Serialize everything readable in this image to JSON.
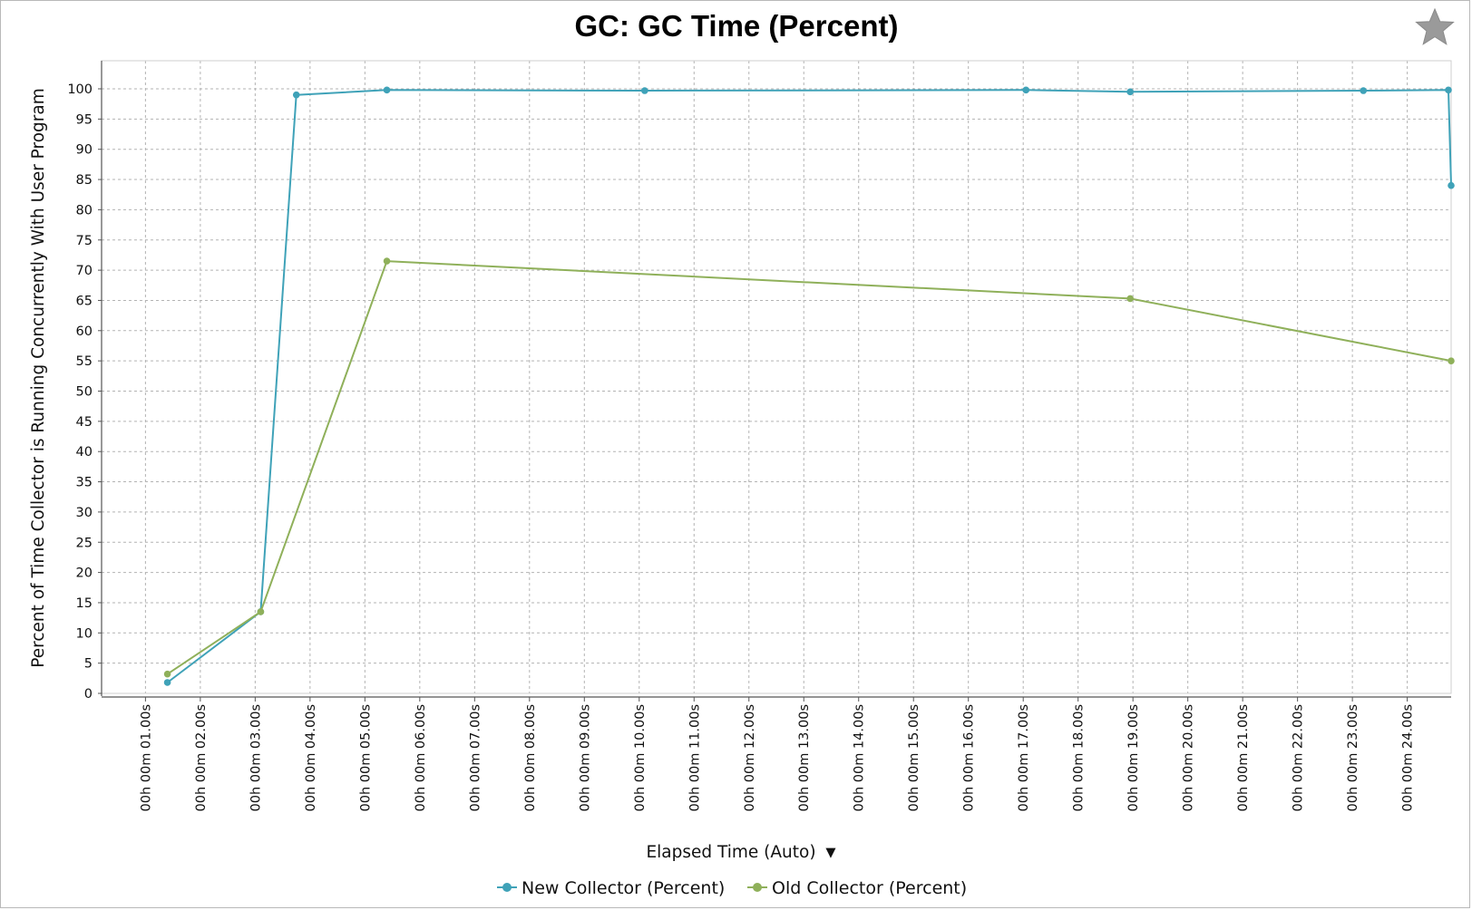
{
  "chart_data": {
    "type": "line",
    "title": "GC: GC Time (Percent)",
    "xlabel": "Elapsed Time (Auto)",
    "xlabel_menu_glyph": "▼",
    "ylabel": "Percent of Time Collector is Running Concurrently With User Program",
    "ylim": [
      0,
      100
    ],
    "yticks": [
      0,
      5,
      10,
      15,
      20,
      25,
      30,
      35,
      40,
      45,
      50,
      55,
      60,
      65,
      70,
      75,
      80,
      85,
      90,
      95,
      100
    ],
    "xlim": [
      0.2,
      24.8
    ],
    "xticks": [
      {
        "value": 1,
        "label": "00h 00m 01.00s"
      },
      {
        "value": 2,
        "label": "00h 00m 02.00s"
      },
      {
        "value": 3,
        "label": "00h 00m 03.00s"
      },
      {
        "value": 4,
        "label": "00h 00m 04.00s"
      },
      {
        "value": 5,
        "label": "00h 00m 05.00s"
      },
      {
        "value": 6,
        "label": "00h 00m 06.00s"
      },
      {
        "value": 7,
        "label": "00h 00m 07.00s"
      },
      {
        "value": 8,
        "label": "00h 00m 08.00s"
      },
      {
        "value": 9,
        "label": "00h 00m 09.00s"
      },
      {
        "value": 10,
        "label": "00h 00m 10.00s"
      },
      {
        "value": 11,
        "label": "00h 00m 11.00s"
      },
      {
        "value": 12,
        "label": "00h 00m 12.00s"
      },
      {
        "value": 13,
        "label": "00h 00m 13.00s"
      },
      {
        "value": 14,
        "label": "00h 00m 14.00s"
      },
      {
        "value": 15,
        "label": "00h 00m 15.00s"
      },
      {
        "value": 16,
        "label": "00h 00m 16.00s"
      },
      {
        "value": 17,
        "label": "00h 00m 17.00s"
      },
      {
        "value": 18,
        "label": "00h 00m 18.00s"
      },
      {
        "value": 19,
        "label": "00h 00m 19.00s"
      },
      {
        "value": 20,
        "label": "00h 00m 20.00s"
      },
      {
        "value": 21,
        "label": "00h 00m 21.00s"
      },
      {
        "value": 22,
        "label": "00h 00m 22.00s"
      },
      {
        "value": 23,
        "label": "00h 00m 23.00s"
      },
      {
        "value": 24,
        "label": "00h 00m 24.00s"
      }
    ],
    "grid": true,
    "legend_position": "bottom-center",
    "series": [
      {
        "name": "New Collector (Percent)",
        "color": "#3fa2b8",
        "points": [
          {
            "x": 1.4,
            "y": 1.8
          },
          {
            "x": 3.1,
            "y": 13.5
          },
          {
            "x": 3.75,
            "y": 99.0
          },
          {
            "x": 5.4,
            "y": 99.8
          },
          {
            "x": 10.1,
            "y": 99.7
          },
          {
            "x": 17.05,
            "y": 99.8
          },
          {
            "x": 18.95,
            "y": 99.5
          },
          {
            "x": 23.2,
            "y": 99.7
          },
          {
            "x": 24.75,
            "y": 99.8
          },
          {
            "x": 24.8,
            "y": 84.0
          }
        ]
      },
      {
        "name": "Old Collector (Percent)",
        "color": "#8fb05a",
        "points": [
          {
            "x": 1.4,
            "y": 3.2
          },
          {
            "x": 3.1,
            "y": 13.5
          },
          {
            "x": 5.4,
            "y": 71.5
          },
          {
            "x": 18.95,
            "y": 65.3
          },
          {
            "x": 24.8,
            "y": 55.0
          }
        ]
      }
    ]
  },
  "ui": {
    "favorite_icon": "star-icon"
  }
}
